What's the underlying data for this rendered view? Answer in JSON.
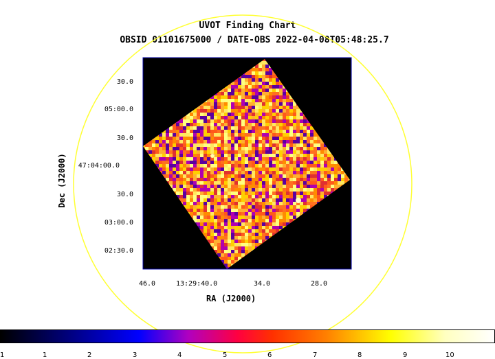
{
  "title": "UVOT Finding Chart",
  "subtitle": "OBSID 01101675000 / DATE-OBS 2022-04-08T05:48:25.7",
  "y_axis": {
    "title": "Dec (J2000)",
    "ticks": [
      "30.0",
      "05:00.0",
      "30.0",
      "47:04:00.0",
      "30.0",
      "03:00.0",
      "02:30.0"
    ]
  },
  "x_axis": {
    "title": "RA (J2000)",
    "ticks": [
      "46.0",
      "13:29:40.0",
      "34.0",
      "28.0"
    ]
  },
  "colorbar": {
    "ticks": [
      "1",
      "1",
      "2",
      "3",
      "4",
      "5",
      "6",
      "7",
      "8",
      "9",
      "10"
    ]
  },
  "colors": {
    "circle": "#ffff33",
    "frame": "#0000aa",
    "background": "#000000"
  }
}
